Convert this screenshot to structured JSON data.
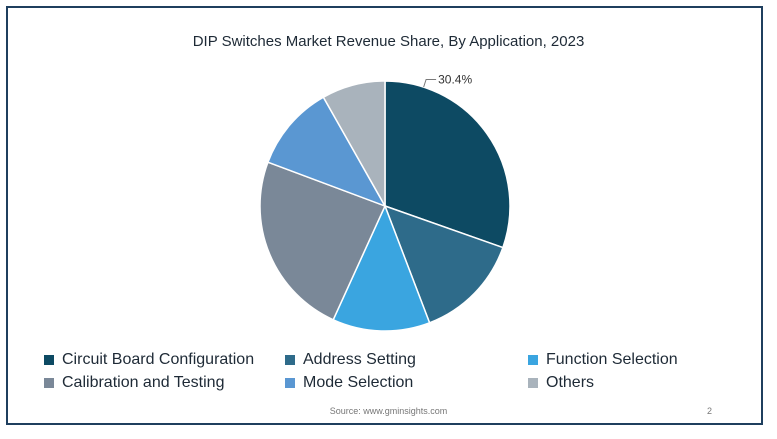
{
  "chart_data": {
    "type": "pie",
    "title": "DIP Switches Market Revenue Share, By Application, 2023",
    "categories": [
      "Circuit Board Configuration",
      "Address Setting",
      "Function Selection",
      "Calibration and Testing",
      "Mode Selection",
      "Others"
    ],
    "values": [
      30.4,
      13.8,
      12.6,
      23.9,
      11.1,
      8.2
    ],
    "data_labels": [
      "30.4%",
      "",
      "",
      "",
      "",
      ""
    ],
    "colors": [
      "#0d4a63",
      "#2e6b8a",
      "#3aa5e0",
      "#7a8898",
      "#5a97d2",
      "#a9b3bc"
    ],
    "legend_position": "bottom"
  },
  "footer": {
    "source": "Source: www.gminsights.com",
    "page_number": "2"
  }
}
